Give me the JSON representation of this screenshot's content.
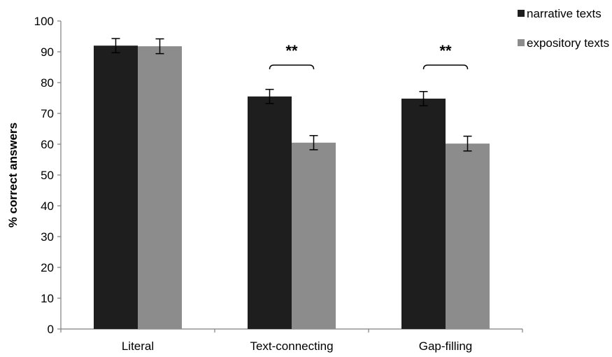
{
  "chart_data": {
    "type": "bar",
    "title": "",
    "xlabel": "",
    "ylabel": "% correct answers",
    "ylim": [
      0,
      100
    ],
    "yticks": [
      0,
      10,
      20,
      30,
      40,
      50,
      60,
      70,
      80,
      90,
      100
    ],
    "grid": false,
    "legend_position": "top-right",
    "categories": [
      "Literal",
      "Text-connecting",
      "Gap-filling"
    ],
    "series": [
      {
        "name": "narrative texts",
        "color": "#1e1e1e",
        "values": [
          92,
          75.5,
          74.8
        ],
        "errors": [
          2.3,
          2.3,
          2.3
        ]
      },
      {
        "name": "expository texts",
        "color": "#8c8c8c",
        "values": [
          91.8,
          60.5,
          60.2
        ],
        "errors": [
          2.4,
          2.3,
          2.4
        ]
      }
    ],
    "annotations": [
      {
        "category": "Text-connecting",
        "text": "**"
      },
      {
        "category": "Gap-filling",
        "text": "**"
      }
    ]
  }
}
